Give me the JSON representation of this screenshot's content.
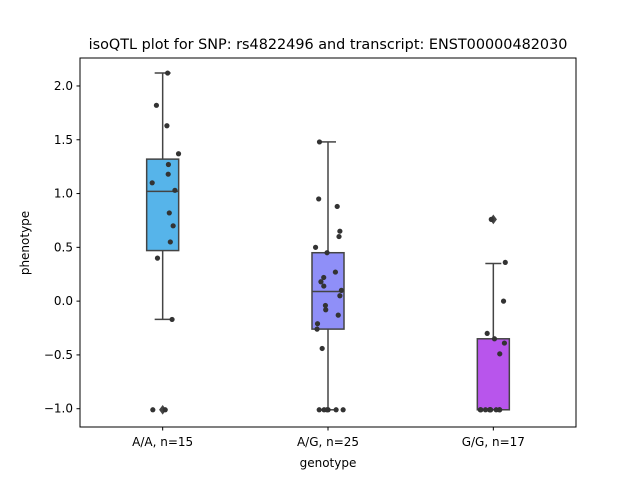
{
  "chart_data": {
    "type": "box",
    "title": "isoQTL plot for SNP: rs4822496 and transcript: ENST00000482030",
    "xlabel": "genotype",
    "ylabel": "phenotype",
    "ylim": [
      -1.17,
      2.26
    ],
    "yticks": [
      -1.0,
      -0.5,
      0.0,
      0.5,
      1.0,
      1.5,
      2.0
    ],
    "ytick_labels": [
      "−1.0",
      "−0.5",
      "0.0",
      "0.5",
      "1.0",
      "1.5",
      "2.0"
    ],
    "grid": false,
    "categories": [
      "A/A, n=15",
      "A/G, n=25",
      "G/G, n=17"
    ],
    "boxes": [
      {
        "category": "A/A, n=15",
        "color": "#56b4ea",
        "q1": 0.47,
        "median": 1.02,
        "q3": 1.32,
        "whisker_low": -0.17,
        "whisker_high": 2.12,
        "outliers": [
          -1.01
        ],
        "points": [
          2.12,
          1.82,
          1.63,
          1.37,
          1.27,
          1.18,
          1.1,
          1.03,
          0.82,
          0.7,
          0.55,
          0.4,
          -0.17,
          -1.01,
          -1.01
        ]
      },
      {
        "category": "A/G, n=25",
        "color": "#8f8ff8",
        "q1": -0.26,
        "median": 0.09,
        "q3": 0.45,
        "whisker_low": -1.01,
        "whisker_high": 1.48,
        "outliers": [],
        "points": [
          1.48,
          0.95,
          0.88,
          0.65,
          0.6,
          0.5,
          0.45,
          0.27,
          0.22,
          0.18,
          0.14,
          0.1,
          0.05,
          -0.04,
          -0.08,
          -0.13,
          -0.21,
          -0.26,
          -0.44,
          -1.01,
          -1.01,
          -1.01,
          -1.01,
          -1.01,
          -1.01
        ]
      },
      {
        "category": "G/G, n=17",
        "color": "#b855ec",
        "q1": -1.01,
        "median": -1.01,
        "q3": -0.35,
        "whisker_low": -1.01,
        "whisker_high": 0.35,
        "outliers": [
          0.76
        ],
        "points": [
          0.76,
          0.36,
          0.0,
          -0.3,
          -0.35,
          -0.39,
          -0.49,
          -1.01,
          -1.01,
          -1.01,
          -1.01,
          -1.01,
          -1.01,
          -1.01,
          -1.01,
          -1.01,
          -1.01
        ]
      }
    ]
  }
}
